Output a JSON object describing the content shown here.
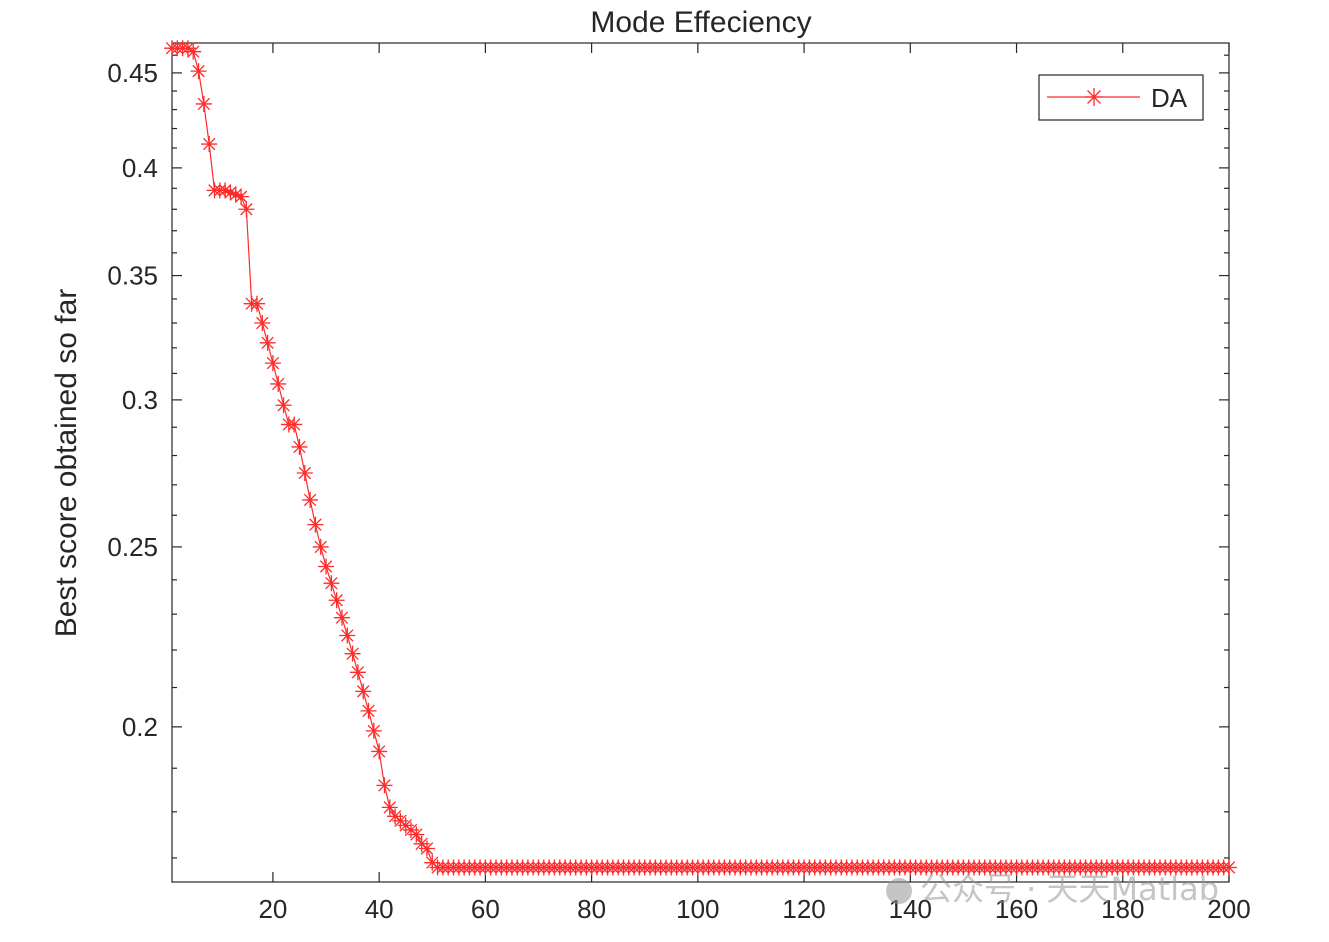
{
  "chart_data": {
    "type": "line",
    "title": "Mode Effeciency",
    "xlabel": "",
    "ylabel": "Best score obtained so far",
    "xlim": [
      1,
      200
    ],
    "ylim": [
      0.165,
      0.467
    ],
    "y_scale": "log",
    "x_ticks": [
      20,
      40,
      60,
      80,
      100,
      120,
      140,
      160,
      180,
      200
    ],
    "y_ticks": [
      0.2,
      0.25,
      0.3,
      0.35,
      0.4,
      0.45
    ],
    "y_tick_labels": [
      "0.2",
      "0.25",
      "0.3",
      "0.35",
      "0.4",
      "0.45"
    ],
    "grid": false,
    "legend": {
      "position": "top-right",
      "entries": [
        "DA"
      ]
    },
    "series": [
      {
        "name": "DA",
        "color": "#ff2a2a",
        "marker": "asterisk",
        "x": [
          1,
          2,
          3,
          4,
          5,
          6,
          7,
          8,
          9,
          10,
          11,
          12,
          13,
          14,
          15,
          16,
          17,
          18,
          19,
          20,
          21,
          22,
          23,
          24,
          25,
          26,
          27,
          28,
          29,
          30,
          31,
          32,
          33,
          34,
          35,
          36,
          37,
          38,
          39,
          40,
          41,
          42,
          43,
          44,
          45,
          46,
          47,
          48,
          49,
          50,
          51,
          200
        ],
        "y": [
          0.464,
          0.464,
          0.464,
          0.464,
          0.462,
          0.451,
          0.433,
          0.412,
          0.389,
          0.389,
          0.389,
          0.388,
          0.387,
          0.386,
          0.38,
          0.338,
          0.338,
          0.33,
          0.322,
          0.314,
          0.306,
          0.298,
          0.291,
          0.291,
          0.283,
          0.274,
          0.265,
          0.257,
          0.25,
          0.244,
          0.239,
          0.234,
          0.229,
          0.224,
          0.219,
          0.214,
          0.209,
          0.204,
          0.199,
          0.194,
          0.186,
          0.181,
          0.179,
          0.178,
          0.177,
          0.176,
          0.175,
          0.173,
          0.172,
          0.169,
          0.168,
          0.168
        ]
      }
    ]
  },
  "watermark": {
    "icon": "wechat-icon",
    "text": "公众号 · 天天Matlab"
  }
}
